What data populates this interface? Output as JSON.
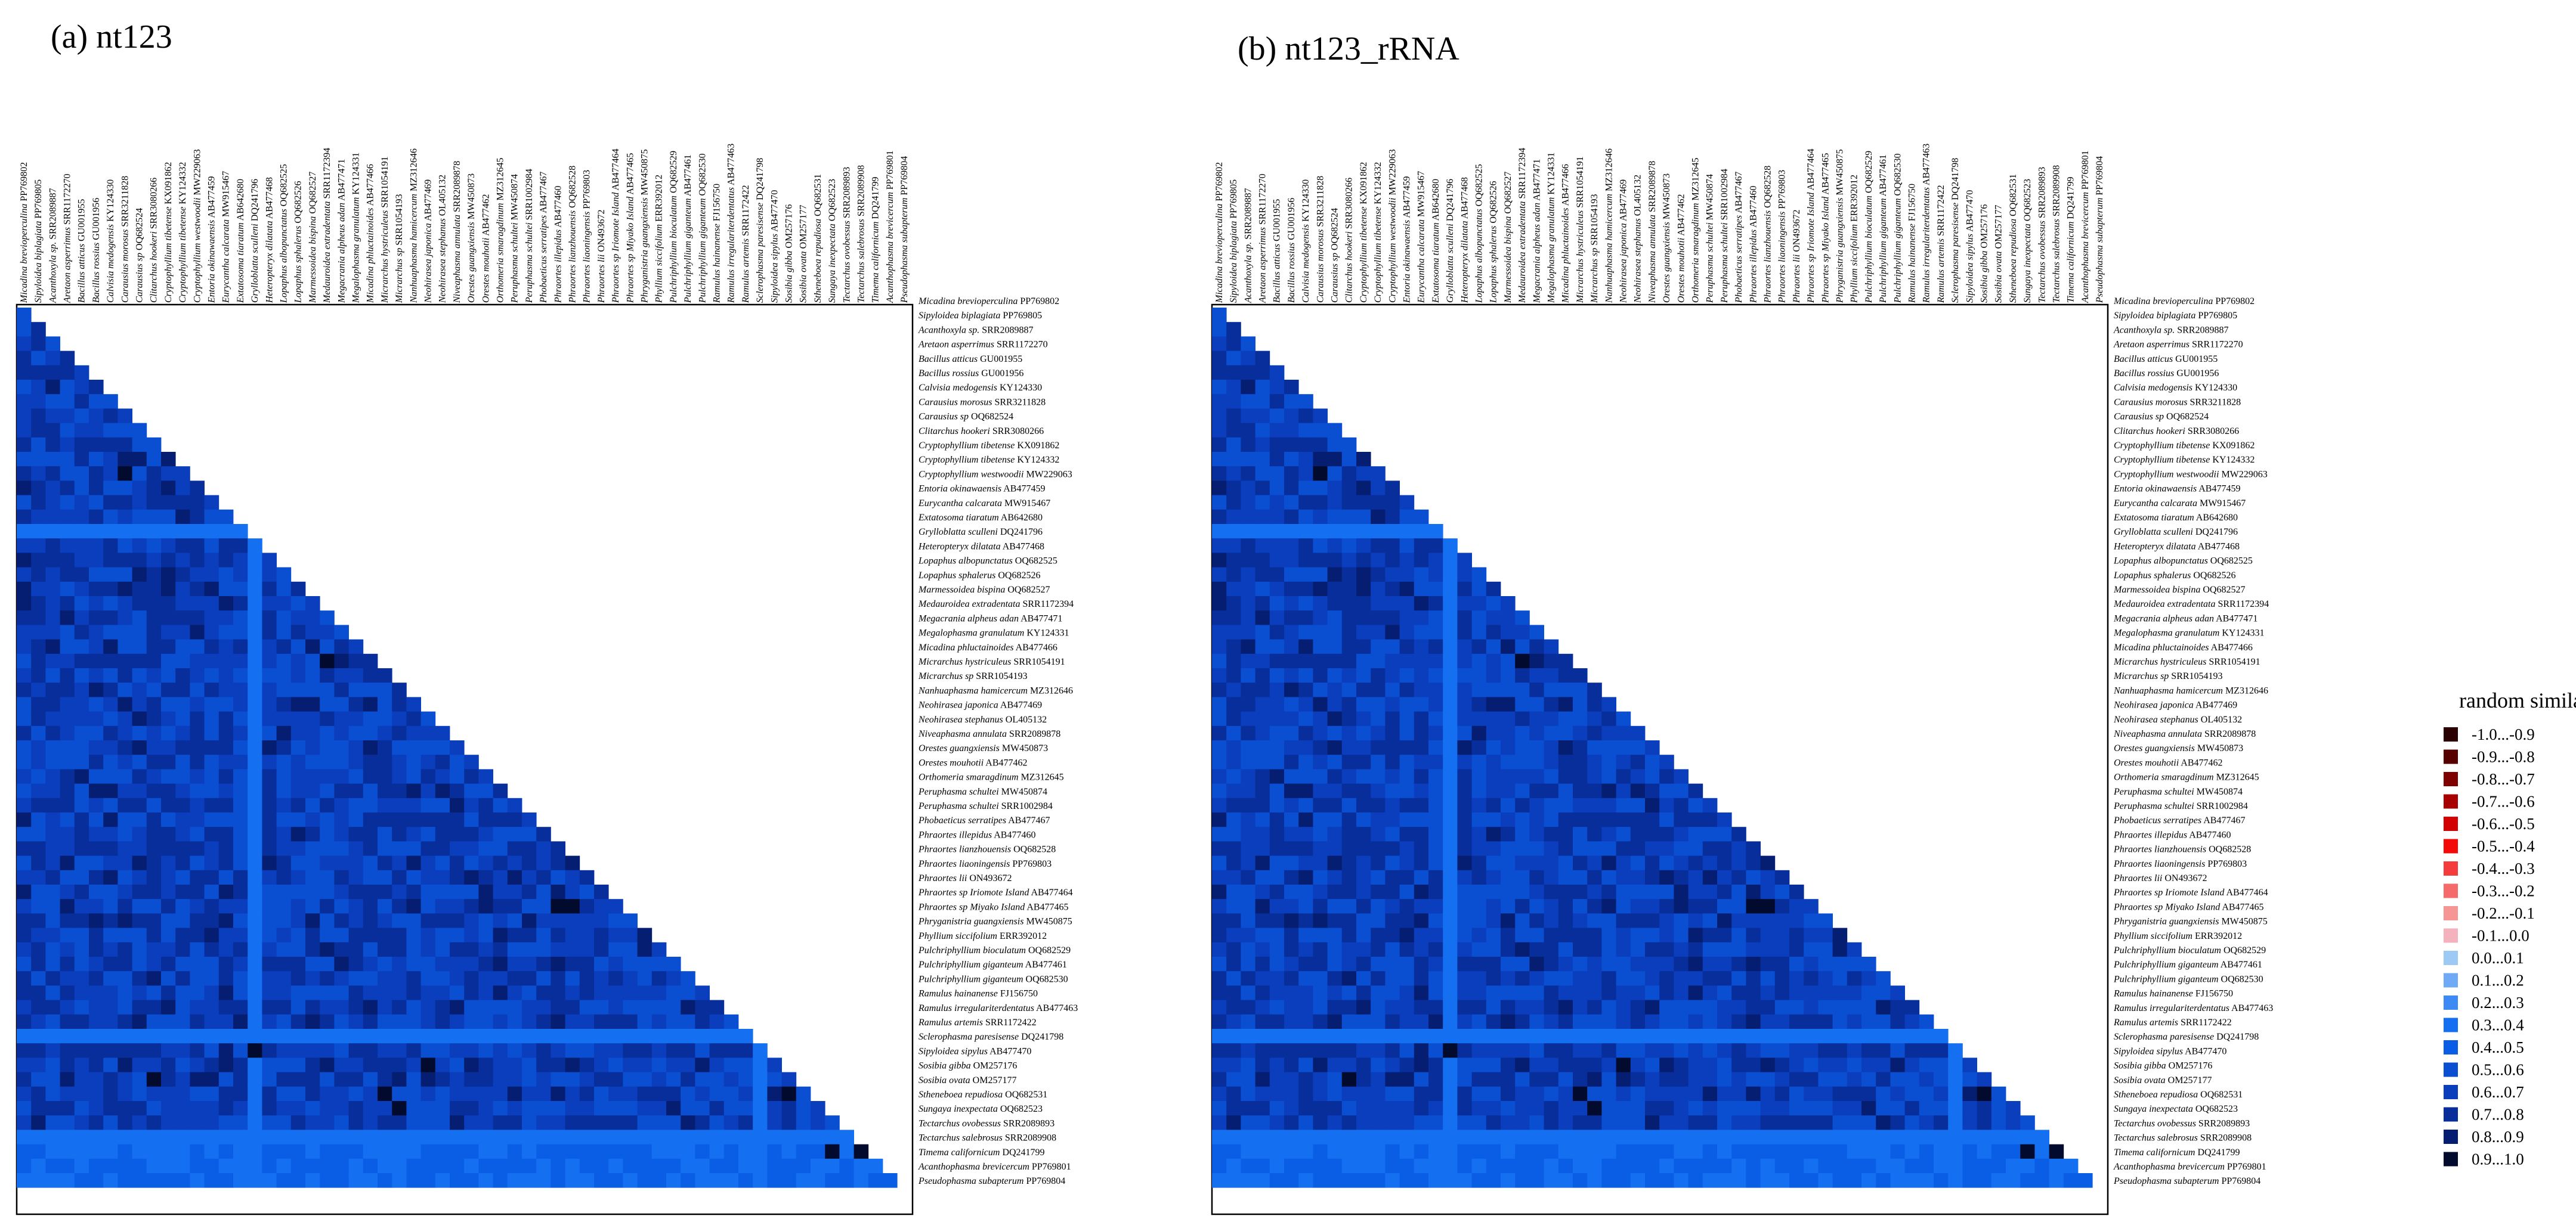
{
  "figure": {
    "panels": [
      {
        "title": "(a) nt123"
      },
      {
        "title": "(b) nt123_rRNA"
      }
    ],
    "legend": {
      "title": "random similarity",
      "items": [
        {
          "label": "-1.0...-0.9",
          "color": "#2a0000"
        },
        {
          "label": "-0.9...-0.8",
          "color": "#560000"
        },
        {
          "label": "-0.8...-0.7",
          "color": "#7e0000"
        },
        {
          "label": "-0.7...-0.6",
          "color": "#a80000"
        },
        {
          "label": "-0.6...-0.5",
          "color": "#d20000"
        },
        {
          "label": "-0.5...-0.4",
          "color": "#f50a0a"
        },
        {
          "label": "-0.4...-0.3",
          "color": "#f53c3c"
        },
        {
          "label": "-0.3...-0.2",
          "color": "#f56a6a"
        },
        {
          "label": "-0.2...-0.1",
          "color": "#f79494"
        },
        {
          "label": "-0.1...0.0",
          "color": "#f4b2bf"
        },
        {
          "label": "0.0...0.1",
          "color": "#9ccaf5"
        },
        {
          "label": "0.1...0.2",
          "color": "#6eaaf5"
        },
        {
          "label": "0.2...0.3",
          "color": "#3d8af5"
        },
        {
          "label": "0.3...0.4",
          "color": "#1470f0"
        },
        {
          "label": "0.4...0.5",
          "color": "#0a5ee6"
        },
        {
          "label": "0.5...0.6",
          "color": "#0a4ed2"
        },
        {
          "label": "0.6...0.7",
          "color": "#0a3ebc"
        },
        {
          "label": "0.7...0.8",
          "color": "#082e9c"
        },
        {
          "label": "0.8...0.9",
          "color": "#061e72"
        },
        {
          "label": "0.9...1.0",
          "color": "#020b2e"
        }
      ]
    }
  },
  "chart_data": [
    {
      "type": "heatmap",
      "title": "(a) nt123",
      "legend_title": "random similarity",
      "taxa": [
        {
          "sp": "Micadina brevioperculina",
          "acc": "PP769802"
        },
        {
          "sp": "Sipyloidea biplagiata",
          "acc": "PP769805"
        },
        {
          "sp": "Acanthoxyla sp.",
          "acc": "SRR2089887"
        },
        {
          "sp": "Aretaon asperrimus",
          "acc": "SRR1172270"
        },
        {
          "sp": "Bacillus atticus",
          "acc": "GU001955"
        },
        {
          "sp": "Bacillus rossius",
          "acc": "GU001956"
        },
        {
          "sp": "Calvisia medogensis",
          "acc": "KY124330"
        },
        {
          "sp": "Carausius morosus",
          "acc": "SRR3211828"
        },
        {
          "sp": "Carausius sp",
          "acc": "OQ682524"
        },
        {
          "sp": "Clitarchus hookeri",
          "acc": "SRR3080266"
        },
        {
          "sp": "Cryptophyllium tibetense",
          "acc": "KX091862"
        },
        {
          "sp": "Cryptophyllium tibetense",
          "acc": "KY124332"
        },
        {
          "sp": "Cryptophyllium westwoodii",
          "acc": "MW229063"
        },
        {
          "sp": "Entoria okinawaensis",
          "acc": "AB477459"
        },
        {
          "sp": "Eurycantha calcarata",
          "acc": "MW915467"
        },
        {
          "sp": "Extatosoma tiaratum",
          "acc": "AB642680"
        },
        {
          "sp": "Grylloblatta sculleni",
          "acc": "DQ241796"
        },
        {
          "sp": "Heteropteryx dilatata",
          "acc": "AB477468"
        },
        {
          "sp": "Lopaphus albopunctatus",
          "acc": "OQ682525"
        },
        {
          "sp": "Lopaphus sphalerus",
          "acc": "OQ682526"
        },
        {
          "sp": "Marmessoidea bispina",
          "acc": "OQ682527"
        },
        {
          "sp": "Medauroidea extradentata",
          "acc": "SRR1172394"
        },
        {
          "sp": "Megacrania alpheus adan",
          "acc": "AB477471"
        },
        {
          "sp": "Megalophasma granulatum",
          "acc": "KY124331"
        },
        {
          "sp": "Micadina phluctainoides",
          "acc": "AB477466"
        },
        {
          "sp": "Micrarchus hystriculeus",
          "acc": "SRR1054191"
        },
        {
          "sp": "Micrarchus sp",
          "acc": "SRR1054193"
        },
        {
          "sp": "Nanhuaphasma hamicercum",
          "acc": "MZ312646"
        },
        {
          "sp": "Neohirasea japonica",
          "acc": "AB477469"
        },
        {
          "sp": "Neohirasea stephanus",
          "acc": "OL405132"
        },
        {
          "sp": "Niveaphasma annulata",
          "acc": "SRR2089878"
        },
        {
          "sp": "Orestes guangxiensis",
          "acc": "MW450873"
        },
        {
          "sp": "Orestes mouhotii",
          "acc": "AB477462"
        },
        {
          "sp": "Orthomeria smaragdinum",
          "acc": "MZ312645"
        },
        {
          "sp": "Peruphasma schultei",
          "acc": "MW450874"
        },
        {
          "sp": "Peruphasma schultei",
          "acc": "SRR1002984"
        },
        {
          "sp": "Phobaeticus serratipes",
          "acc": "AB477467"
        },
        {
          "sp": "Phraortes illepidus",
          "acc": "AB477460"
        },
        {
          "sp": "Phraortes lianzhouensis",
          "acc": "OQ682528"
        },
        {
          "sp": "Phraortes liaoningensis",
          "acc": "PP769803"
        },
        {
          "sp": "Phraortes lii",
          "acc": "ON493672"
        },
        {
          "sp": "Phraortes sp Iriomote Island",
          "acc": "AB477464"
        },
        {
          "sp": "Phraortes sp Miyako Island",
          "acc": "AB477465"
        },
        {
          "sp": "Phryganistria guangxiensis",
          "acc": "MW450875"
        },
        {
          "sp": "Phyllium siccifolium",
          "acc": "ERR392012"
        },
        {
          "sp": "Pulchriphyllium bioculatum",
          "acc": "OQ682529"
        },
        {
          "sp": "Pulchriphyllium giganteum",
          "acc": "AB477461"
        },
        {
          "sp": "Pulchriphyllium giganteum",
          "acc": "OQ682530"
        },
        {
          "sp": "Ramulus hainanense",
          "acc": "FJ156750"
        },
        {
          "sp": "Ramulus irregulariterdentatus",
          "acc": "AB477463"
        },
        {
          "sp": "Ramulus artemis",
          "acc": "SRR1172422"
        },
        {
          "sp": "Sclerophasma paresisense",
          "acc": "DQ241798"
        },
        {
          "sp": "Sipyloidea sipylus",
          "acc": "AB477470"
        },
        {
          "sp": "Sosibia gibba",
          "acc": "OM257176"
        },
        {
          "sp": "Sosibia ovata",
          "acc": "OM257177"
        },
        {
          "sp": "Stheneboea repudiosa",
          "acc": "OQ682531"
        },
        {
          "sp": "Sungaya inexpectata",
          "acc": "OQ682523"
        },
        {
          "sp": "Tectarchus ovobessus",
          "acc": "SRR2089893"
        },
        {
          "sp": "Tectarchus salebrosus",
          "acc": "SRR2089908"
        },
        {
          "sp": "Timema californicum",
          "acc": "DQ241799"
        },
        {
          "sp": "Acanthophasma brevicercum",
          "acc": "PP769801"
        },
        {
          "sp": "Pseudophasma subapterum",
          "acc": "PP769804"
        }
      ],
      "value_range": [
        0.0,
        1.0
      ],
      "dark_cells": [
        [
          37,
          41
        ],
        [
          37,
          42
        ],
        [
          38,
          42
        ],
        [
          28,
          53
        ],
        [
          25,
          55
        ],
        [
          26,
          56
        ],
        [
          16,
          52
        ],
        [
          9,
          54
        ],
        [
          30,
          57
        ],
        [
          58,
          59
        ],
        [
          56,
          59
        ],
        [
          53,
          55
        ],
        [
          21,
          25
        ],
        [
          22,
          25
        ],
        [
          7,
          12
        ]
      ],
      "outlier_taxa": [
        "Grylloblatta sculleni DQ241796",
        "Sclerophasma paresisense DQ241798",
        "Timema californicum DQ241799"
      ]
    },
    {
      "type": "heatmap",
      "title": "(b) nt123_rRNA",
      "legend_title": "random similarity",
      "taxa_same_as_panel": "(a) nt123",
      "value_range": [
        0.0,
        1.0
      ],
      "dark_cells": [
        [
          37,
          41
        ],
        [
          37,
          42
        ],
        [
          38,
          42
        ],
        [
          28,
          53
        ],
        [
          25,
          55
        ],
        [
          26,
          56
        ],
        [
          16,
          52
        ],
        [
          9,
          54
        ],
        [
          30,
          57
        ],
        [
          58,
          59
        ],
        [
          56,
          59
        ],
        [
          53,
          55
        ],
        [
          21,
          25
        ],
        [
          22,
          25
        ],
        [
          7,
          12
        ]
      ],
      "outlier_taxa": [
        "Grylloblatta sculleni DQ241796",
        "Sclerophasma paresisense DQ241798",
        "Timema californicum DQ241799"
      ]
    }
  ]
}
